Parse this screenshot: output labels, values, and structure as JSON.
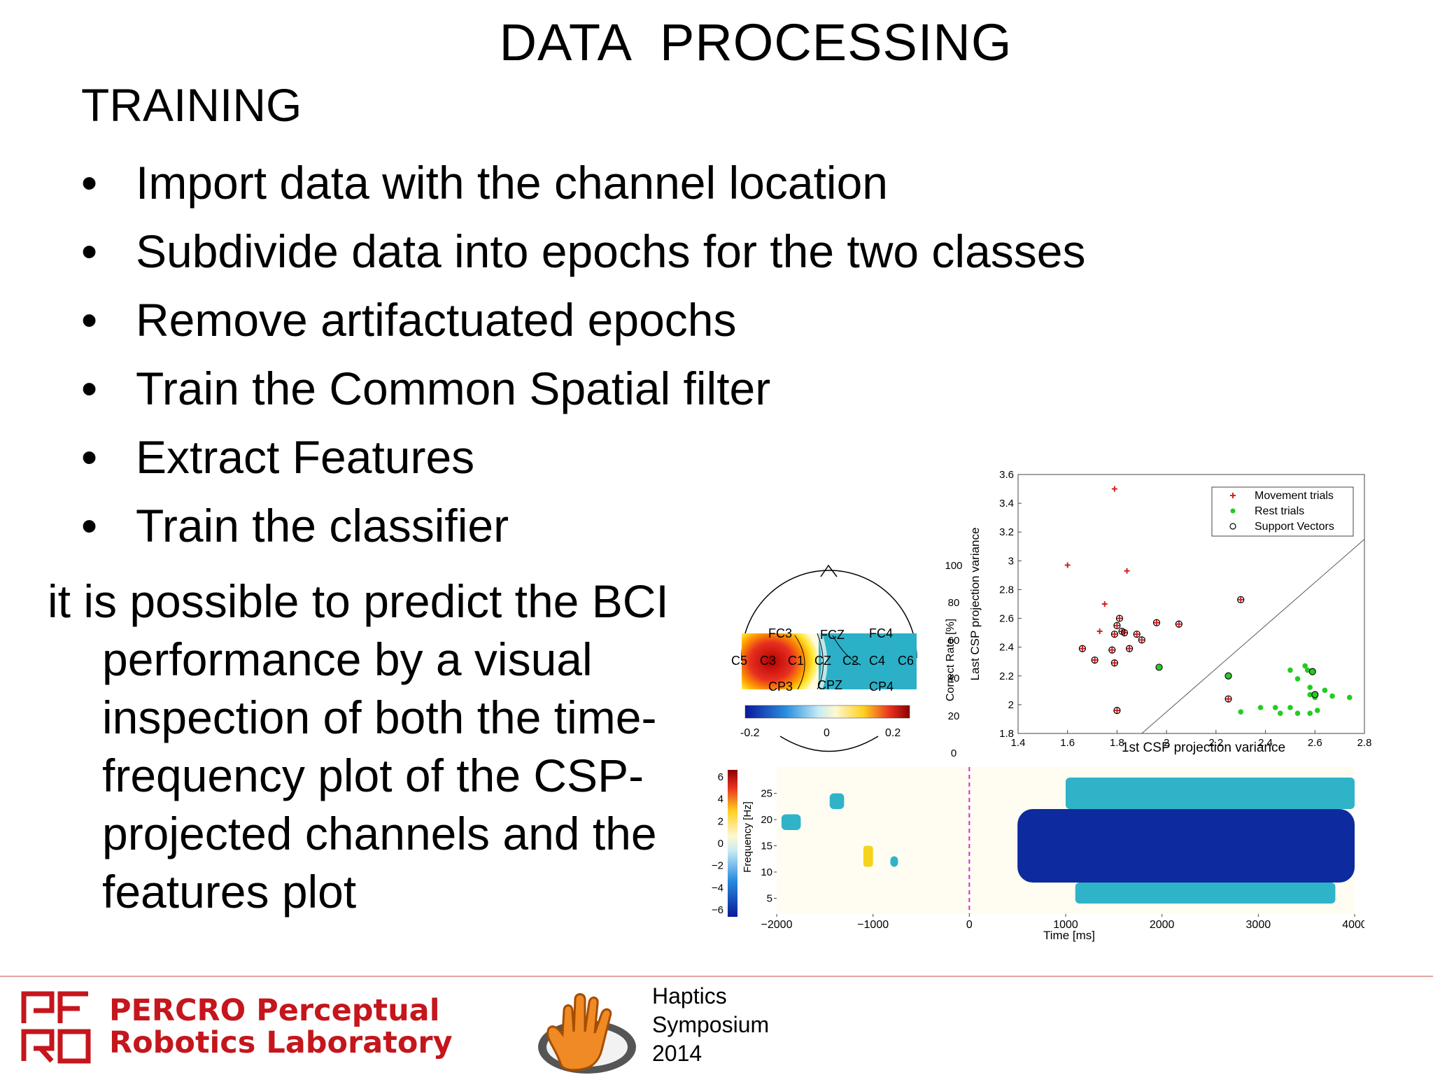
{
  "title": "DATA  PROCESSING",
  "subtitle": "TRAINING",
  "bullets": [
    "Import data with the channel location",
    "Subdivide data into epochs for the two classes",
    "Remove artifactuated epochs",
    "Train the Common Spatial filter",
    "Extract Features",
    "Train the classifier"
  ],
  "bullet_glyph": "•",
  "paragraph": "it is possible to predict the BCI performance by a visual inspection of both the time-frequency plot of the CSP-projected channels and the features plot",
  "footer": {
    "percro_line1": "PERCRO Perceptual",
    "percro_line2": "Robotics Laboratory",
    "haptics_lines": [
      "Haptics",
      "Symposium",
      "2014"
    ],
    "percro_color": "#c4161c",
    "haptics_hand_color": "#f08a24"
  },
  "topoplot": {
    "channels": [
      "FC3",
      "FCZ",
      "FC4",
      "C5",
      "C3",
      "C1",
      "CZ",
      "C2",
      "C4",
      "C6",
      "CP3",
      "CPZ",
      "CP4"
    ],
    "colorbar_ticks": [
      "-0.2",
      "0",
      "0.2"
    ]
  },
  "chart_data": [
    {
      "type": "scatter",
      "xlabel": "1st CSP projection variance",
      "ylabel": "Last CSP projection variance",
      "xlim": [
        1.4,
        2.8
      ],
      "ylim": [
        1.8,
        3.6
      ],
      "x_ticks": [
        "1.4",
        "1.6",
        "1.8",
        "2",
        "2.2",
        "2.4",
        "2.6",
        "2.8"
      ],
      "y_ticks": [
        "1.8",
        "2",
        "2.2",
        "2.4",
        "2.6",
        "2.8",
        "3",
        "3.2",
        "3.4",
        "3.6"
      ],
      "legend": {
        "position": "top-right",
        "entries": [
          "Movement trials",
          "Rest trials",
          "Support Vectors"
        ]
      },
      "background_axis": {
        "ylabel": "Correct Rate [%]",
        "ticks": [
          "100",
          "80",
          "60",
          "40",
          "20",
          "0"
        ]
      },
      "series": [
        {
          "name": "Movement trials",
          "color": "#d42020",
          "marker": "plus",
          "points": [
            [
              1.79,
              3.5
            ],
            [
              1.6,
              2.97
            ],
            [
              1.84,
              2.93
            ],
            [
              1.75,
              2.7
            ],
            [
              1.73,
              2.51
            ],
            [
              1.8,
              2.55
            ],
            [
              1.82,
              2.51
            ],
            [
              1.79,
              2.49
            ],
            [
              1.83,
              2.5
            ],
            [
              1.81,
              2.6
            ],
            [
              1.88,
              2.49
            ],
            [
              1.66,
              2.39
            ],
            [
              1.71,
              2.31
            ],
            [
              1.78,
              2.38
            ],
            [
              1.79,
              2.29
            ],
            [
              1.85,
              2.39
            ],
            [
              1.9,
              2.45
            ],
            [
              1.96,
              2.57
            ],
            [
              2.05,
              2.56
            ],
            [
              2.3,
              2.73
            ],
            [
              2.25,
              2.04
            ],
            [
              1.8,
              1.96
            ]
          ]
        },
        {
          "name": "Rest trials",
          "color": "#22cc22",
          "marker": "dot",
          "points": [
            [
              1.97,
              2.26
            ],
            [
              2.25,
              2.2
            ],
            [
              2.3,
              1.95
            ],
            [
              2.38,
              1.98
            ],
            [
              2.44,
              1.98
            ],
            [
              2.46,
              1.94
            ],
            [
              2.5,
              2.24
            ],
            [
              2.53,
              2.18
            ],
            [
              2.56,
              2.27
            ],
            [
              2.57,
              2.24
            ],
            [
              2.58,
              2.12
            ],
            [
              2.58,
              2.07
            ],
            [
              2.6,
              2.07
            ],
            [
              2.6,
              2.05
            ],
            [
              2.5,
              1.98
            ],
            [
              2.53,
              1.94
            ],
            [
              2.58,
              1.94
            ],
            [
              2.61,
              1.96
            ],
            [
              2.64,
              2.1
            ],
            [
              2.67,
              2.06
            ],
            [
              2.74,
              2.05
            ],
            [
              2.59,
              2.23
            ]
          ]
        },
        {
          "name": "Support Vectors",
          "color": "#000000",
          "marker": "circle",
          "points": [
            [
              1.8,
              2.55
            ],
            [
              1.82,
              2.51
            ],
            [
              1.79,
              2.49
            ],
            [
              1.83,
              2.5
            ],
            [
              1.81,
              2.6
            ],
            [
              1.88,
              2.49
            ],
            [
              1.66,
              2.39
            ],
            [
              1.71,
              2.31
            ],
            [
              1.78,
              2.38
            ],
            [
              1.79,
              2.29
            ],
            [
              1.85,
              2.39
            ],
            [
              1.9,
              2.45
            ],
            [
              1.96,
              2.57
            ],
            [
              2.05,
              2.56
            ],
            [
              2.3,
              2.73
            ],
            [
              2.25,
              2.04
            ],
            [
              1.8,
              1.96
            ],
            [
              1.97,
              2.26
            ],
            [
              2.25,
              2.2
            ],
            [
              2.59,
              2.23
            ],
            [
              2.6,
              2.07
            ]
          ]
        }
      ],
      "decision_boundary": [
        [
          1.9,
          1.8
        ],
        [
          2.8,
          3.15
        ]
      ]
    },
    {
      "type": "heatmap",
      "xlabel": "Time [ms]",
      "ylabel": "Frequency [Hz]",
      "xlim": [
        -2000,
        4000
      ],
      "ylim": [
        2,
        30
      ],
      "x_ticks": [
        "-2000",
        "-1000",
        "0",
        "1000",
        "2000",
        "3000",
        "4000"
      ],
      "y_ticks": [
        "5",
        "10",
        "15",
        "20",
        "25"
      ],
      "colorbar_ticks": [
        "6",
        "4",
        "2",
        "0",
        "-2",
        "-4",
        "-6"
      ],
      "event_marker_ms": 0,
      "strong_desync_region": {
        "time_ms": [
          500,
          4000
        ],
        "freq_hz": [
          8,
          22
        ],
        "value": -6
      },
      "moderate_desync_patches": [
        {
          "time_ms": [
            1000,
            4000
          ],
          "freq_hz": [
            22,
            28
          ],
          "value": -3
        },
        {
          "time_ms": [
            1100,
            3800
          ],
          "freq_hz": [
            4,
            8
          ],
          "value": -3
        },
        {
          "time_ms": [
            -1950,
            -1750
          ],
          "freq_hz": [
            18,
            21
          ],
          "value": -3
        },
        {
          "time_ms": [
            -1450,
            -1300
          ],
          "freq_hz": [
            22,
            25
          ],
          "value": -3
        },
        {
          "time_ms": [
            -820,
            -740
          ],
          "freq_hz": [
            11,
            13
          ],
          "value": -3
        }
      ],
      "sync_patches": [
        {
          "time_ms": [
            -1100,
            -1000
          ],
          "freq_hz": [
            11,
            15
          ],
          "value": 3
        }
      ]
    }
  ]
}
